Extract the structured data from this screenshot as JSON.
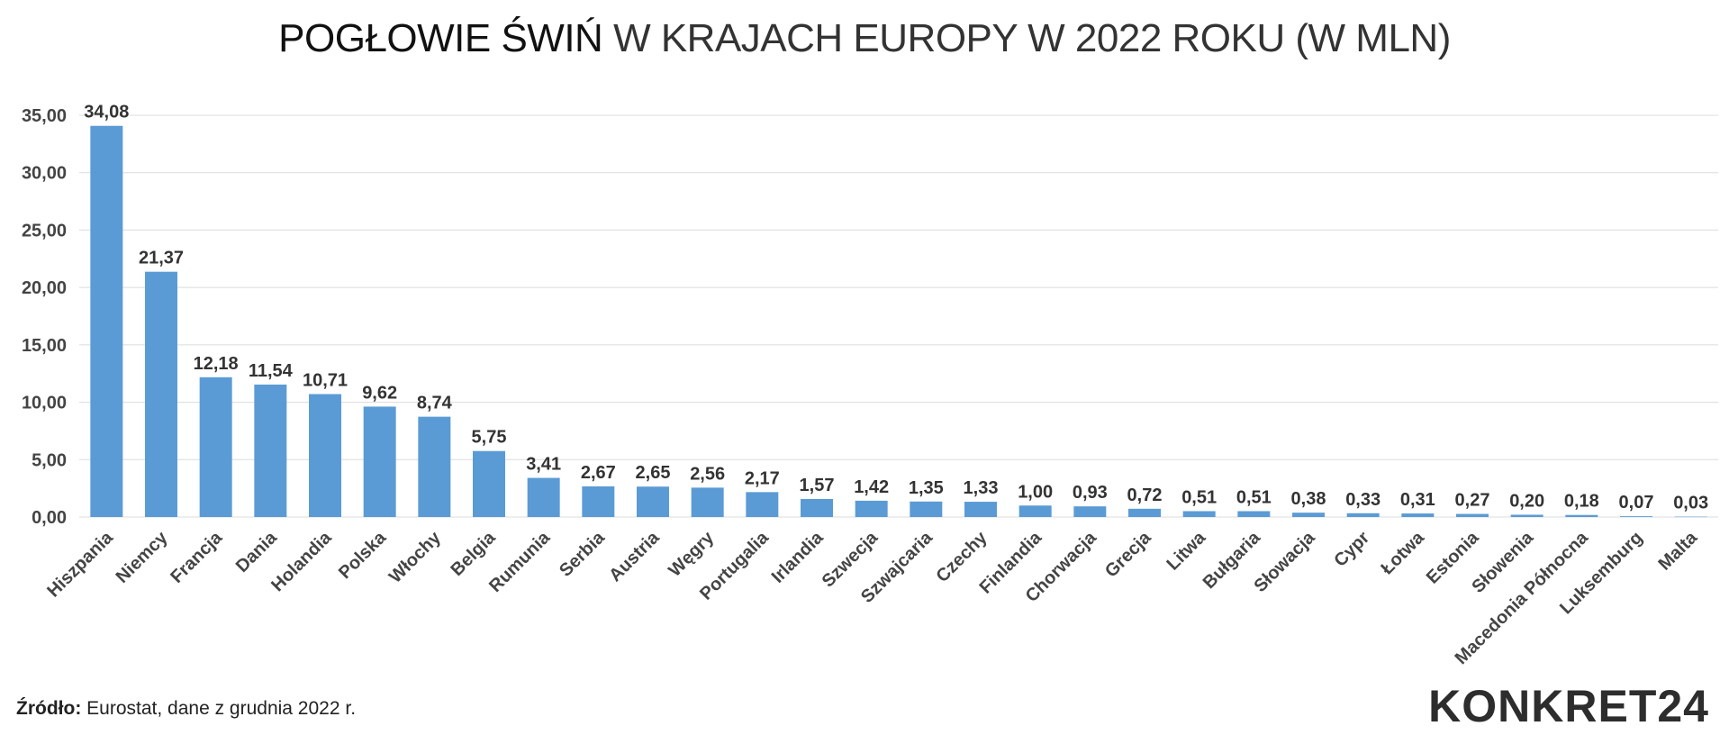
{
  "header": {
    "title_bold": "POGŁOWIE ŚWIŃ",
    "title_rest": "W KRAJACH EUROPY W 2022 ROKU (W MLN)"
  },
  "footer": {
    "source_label": "Źródło:",
    "source_text": "Eurostat, dane z grudnia 2022 r.",
    "logo": "KONKRET24"
  },
  "colors": {
    "bar": "#5b9bd5",
    "grid": "#dcdcdc",
    "text": "#444444"
  },
  "chart_data": {
    "type": "bar",
    "title": "POGŁOWIE ŚWIŃ W KRAJACH EUROPY W 2022 ROKU (W MLN)",
    "xlabel": "",
    "ylabel": "",
    "ylim": [
      0,
      35
    ],
    "yticks": [
      "0,00",
      "5,00",
      "10,00",
      "15,00",
      "20,00",
      "25,00",
      "30,00",
      "35,00"
    ],
    "ytick_values": [
      0,
      5,
      10,
      15,
      20,
      25,
      30,
      35
    ],
    "grid": true,
    "legend": "none",
    "categories": [
      "Hiszpania",
      "Niemcy",
      "Francja",
      "Dania",
      "Holandia",
      "Polska",
      "Włochy",
      "Belgia",
      "Rumunia",
      "Serbia",
      "Austria",
      "Węgry",
      "Portugalia",
      "Irlandia",
      "Szwecja",
      "Szwajcaria",
      "Czechy",
      "Finlandia",
      "Chorwacja",
      "Grecja",
      "Litwa",
      "Bułgaria",
      "Słowacja",
      "Cypr",
      "Łotwa",
      "Estonia",
      "Słowenia",
      "Macedonia Północna",
      "Luksemburg",
      "Malta"
    ],
    "values": [
      34.08,
      21.37,
      12.18,
      11.54,
      10.71,
      9.62,
      8.74,
      5.75,
      3.41,
      2.67,
      2.65,
      2.56,
      2.17,
      1.57,
      1.42,
      1.35,
      1.33,
      1.0,
      0.93,
      0.72,
      0.51,
      0.51,
      0.38,
      0.33,
      0.31,
      0.27,
      0.2,
      0.18,
      0.07,
      0.03
    ],
    "data_labels": [
      "34,08",
      "21,37",
      "12,18",
      "11,54",
      "10,71",
      "9,62",
      "8,74",
      "5,75",
      "3,41",
      "2,67",
      "2,65",
      "2,56",
      "2,17",
      "1,57",
      "1,42",
      "1,35",
      "1,33",
      "1,00",
      "0,93",
      "0,72",
      "0,51",
      "0,51",
      "0,38",
      "0,33",
      "0,31",
      "0,27",
      "0,20",
      "0,18",
      "0,07",
      "0,03"
    ]
  }
}
